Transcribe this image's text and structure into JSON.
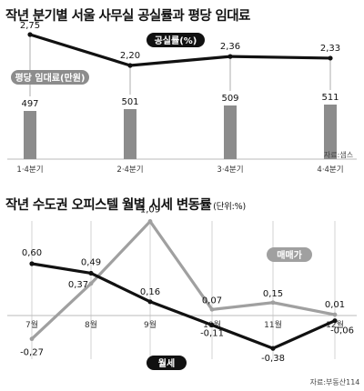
{
  "chart_data": [
    {
      "type": "bar+line",
      "title": "작년 분기별 서울 사무실 공실률과 평당 임대료",
      "categories": [
        "1·4분기",
        "2·4분기",
        "3·4분기",
        "4·4분기"
      ],
      "series": [
        {
          "name": "평당 임대료(만원)",
          "type": "bar",
          "values": [
            497,
            501,
            509,
            511
          ],
          "value_labels": [
            "497",
            "501",
            "509",
            "511"
          ]
        },
        {
          "name": "공실률(%)",
          "type": "line",
          "values": [
            2.75,
            2.2,
            2.36,
            2.33
          ],
          "value_labels": [
            "2,75",
            "2,20",
            "2,36",
            "2,33"
          ]
        }
      ],
      "source": "자료:샘스",
      "colors": {
        "bar": "#8c8c8c",
        "line": "#111111",
        "legend_bg": "#111111"
      }
    },
    {
      "type": "line",
      "title": "작년 수도권 오피스텔 월별 시세 변동률",
      "unit": "(단위:%)",
      "categories": [
        "7월",
        "8월",
        "9월",
        "10월",
        "11월",
        "12월"
      ],
      "series": [
        {
          "name": "매매가",
          "values": [
            -0.27,
            0.37,
            1.09,
            0.07,
            0.15,
            0.01
          ],
          "value_labels": [
            "-0,27",
            "0,37",
            "1,09",
            "0,07",
            "0,15",
            "0,01"
          ]
        },
        {
          "name": "월세",
          "values": [
            0.6,
            0.49,
            0.16,
            -0.11,
            -0.38,
            -0.06
          ],
          "value_labels": [
            "0,60",
            "0,49",
            "0,16",
            "-0,11",
            "-0,38",
            "-0,06"
          ]
        }
      ],
      "source": "자료:부동산114",
      "colors": {
        "sale": "#a0a0a0",
        "rent": "#111111",
        "sale_legend_bg": "#a0a0a0",
        "rent_legend_bg": "#111111"
      }
    }
  ]
}
